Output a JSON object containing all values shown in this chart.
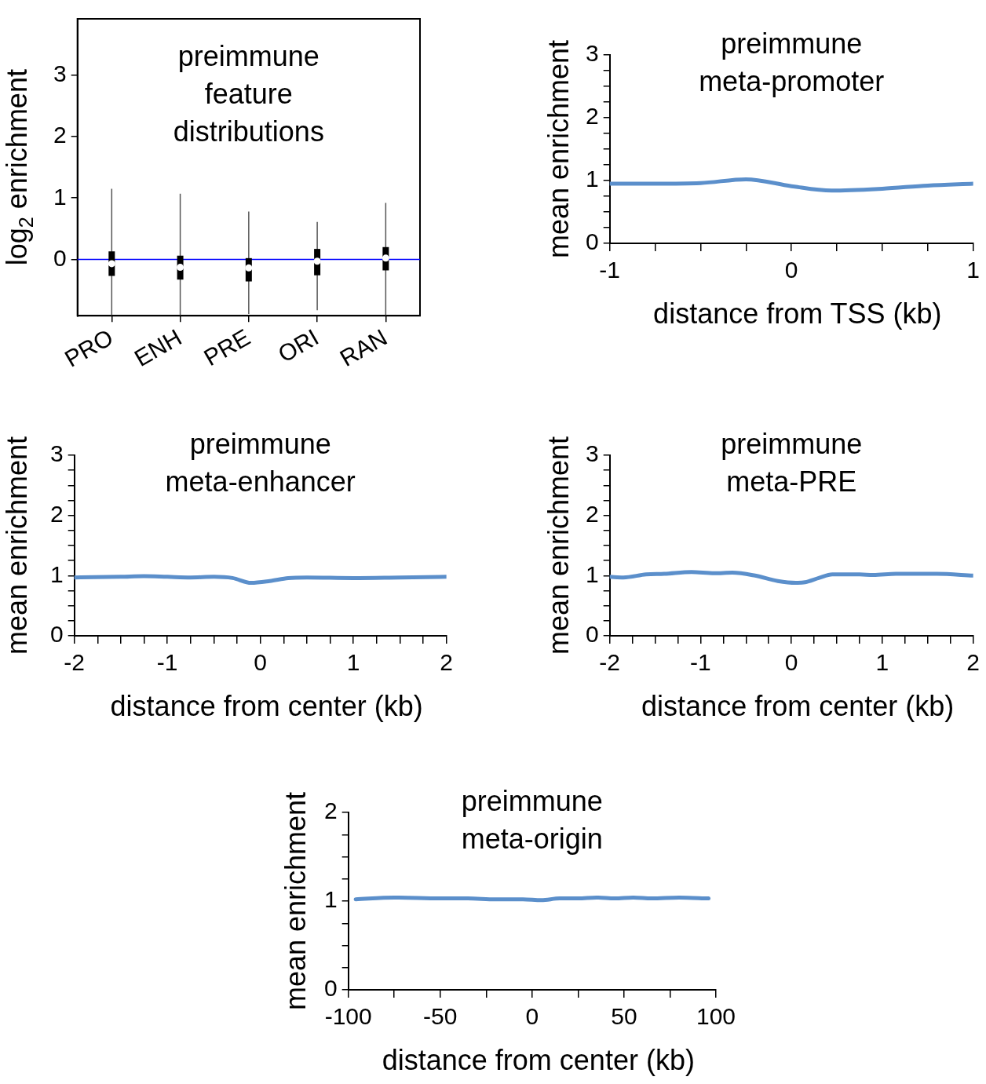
{
  "chart_data": [
    {
      "type": "box",
      "title": "preimmune\nfeature\ndistributions",
      "ylabel": "log$_{2}$ enrichment",
      "categories": [
        "PRO",
        "ENH",
        "PRE",
        "ORI",
        "RAN"
      ],
      "ylim": [
        -0.92,
        3.92
      ],
      "yticks": [
        0,
        1,
        2,
        3
      ],
      "boxes": [
        {
          "low": -0.91,
          "q1": -0.27,
          "median": -0.07,
          "q3": 0.13,
          "high": 1.15
        },
        {
          "low": -0.91,
          "q1": -0.33,
          "median": -0.13,
          "q3": 0.06,
          "high": 1.07
        },
        {
          "low": -0.89,
          "q1": -0.36,
          "median": -0.14,
          "q3": 0.02,
          "high": 0.78
        },
        {
          "low": -0.83,
          "q1": -0.26,
          "median": -0.03,
          "q3": 0.17,
          "high": 0.61
        },
        {
          "low": -0.91,
          "q1": -0.18,
          "median": 0.02,
          "q3": 0.2,
          "high": 0.92
        }
      ],
      "ref_lines": [
        {
          "axis": "y",
          "value": 0,
          "color": "#0000ff"
        }
      ]
    },
    {
      "type": "line",
      "title": "preimmune\nmeta-promoter",
      "xlabel": "distance from TSS (kb)",
      "ylabel": "mean enrichment",
      "x": [
        -1,
        -0.75,
        -0.5,
        -0.25,
        0,
        0.22,
        0.5,
        0.75,
        1
      ],
      "xlim": [
        -1,
        1
      ],
      "ylim": [
        0,
        3
      ],
      "xticks": [
        -1,
        {
          "value": -0.75,
          "label": null
        },
        {
          "value": -0.5,
          "label": null
        },
        {
          "value": -0.25,
          "label": null
        },
        0,
        {
          "value": 0.25,
          "label": null
        },
        {
          "value": 0.5,
          "label": null
        },
        {
          "value": 0.75,
          "label": null
        },
        1
      ],
      "yticks": [
        0,
        {
          "value": 0.25,
          "label": null
        },
        {
          "value": 0.5,
          "label": null
        },
        {
          "value": 0.75,
          "label": null
        },
        1,
        {
          "value": 1.25,
          "label": null
        },
        {
          "value": 1.5,
          "label": null
        },
        {
          "value": 1.75,
          "label": null
        },
        2,
        {
          "value": 2.25,
          "label": null
        },
        {
          "value": 2.5,
          "label": null
        },
        {
          "value": 2.75,
          "label": null
        },
        3
      ],
      "series": [
        {
          "color": "#5b8fcb",
          "values": [
            0.95,
            0.95,
            0.96,
            1.02,
            0.91,
            0.84,
            0.87,
            0.92,
            0.95
          ]
        }
      ]
    },
    {
      "type": "line",
      "title": "preimmune\nmeta-enhancer",
      "xlabel": "distance from center (kb)",
      "ylabel": "mean enrichment",
      "x": [
        -2,
        -1.5,
        -1.25,
        -1,
        -0.75,
        -0.5,
        -0.3,
        -0.1,
        0.1,
        0.3,
        0.5,
        1,
        1.5,
        2
      ],
      "xlim": [
        -2,
        2
      ],
      "ylim": [
        0,
        3
      ],
      "xticks": [
        -2,
        {
          "value": -1.75,
          "label": null
        },
        {
          "value": -1.5,
          "label": null
        },
        {
          "value": -1.25,
          "label": null
        },
        -1,
        {
          "value": -0.75,
          "label": null
        },
        {
          "value": -0.5,
          "label": null
        },
        {
          "value": -0.25,
          "label": null
        },
        0,
        {
          "value": 0.25,
          "label": null
        },
        {
          "value": 0.5,
          "label": null
        },
        {
          "value": 0.75,
          "label": null
        },
        1,
        {
          "value": 1.25,
          "label": null
        },
        {
          "value": 1.5,
          "label": null
        },
        {
          "value": 1.75,
          "label": null
        },
        2
      ],
      "yticks": [
        0,
        {
          "value": 0.25,
          "label": null
        },
        {
          "value": 0.5,
          "label": null
        },
        {
          "value": 0.75,
          "label": null
        },
        1,
        {
          "value": 1.25,
          "label": null
        },
        {
          "value": 1.5,
          "label": null
        },
        {
          "value": 1.75,
          "label": null
        },
        2,
        {
          "value": 2.25,
          "label": null
        },
        {
          "value": 2.5,
          "label": null
        },
        {
          "value": 2.75,
          "label": null
        },
        3
      ],
      "series": [
        {
          "color": "#5b8fcb",
          "values": [
            0.97,
            0.98,
            0.99,
            0.98,
            0.97,
            0.98,
            0.96,
            0.88,
            0.91,
            0.96,
            0.97,
            0.96,
            0.97,
            0.98
          ]
        }
      ]
    },
    {
      "type": "line",
      "title": "preimmune\nmeta-PRE",
      "xlabel": "distance from center (kb)",
      "ylabel": "mean enrichment",
      "x": [
        -2,
        -1.85,
        -1.6,
        -1.4,
        -1.1,
        -0.85,
        -0.65,
        -0.4,
        -0.15,
        0.05,
        0.15,
        0.3,
        0.45,
        0.75,
        0.9,
        1.15,
        1.6,
        2
      ],
      "xlim": [
        -2,
        2
      ],
      "ylim": [
        0,
        3
      ],
      "xticks": [
        -2,
        {
          "value": -1.75,
          "label": null
        },
        {
          "value": -1.5,
          "label": null
        },
        {
          "value": -1.25,
          "label": null
        },
        -1,
        {
          "value": -0.75,
          "label": null
        },
        {
          "value": -0.5,
          "label": null
        },
        {
          "value": -0.25,
          "label": null
        },
        0,
        {
          "value": 0.25,
          "label": null
        },
        {
          "value": 0.5,
          "label": null
        },
        {
          "value": 0.75,
          "label": null
        },
        1,
        {
          "value": 1.25,
          "label": null
        },
        {
          "value": 1.5,
          "label": null
        },
        {
          "value": 1.75,
          "label": null
        },
        2
      ],
      "yticks": [
        0,
        {
          "value": 0.25,
          "label": null
        },
        {
          "value": 0.5,
          "label": null
        },
        {
          "value": 0.75,
          "label": null
        },
        1,
        {
          "value": 1.25,
          "label": null
        },
        {
          "value": 1.5,
          "label": null
        },
        {
          "value": 1.75,
          "label": null
        },
        2,
        {
          "value": 2.25,
          "label": null
        },
        {
          "value": 2.5,
          "label": null
        },
        {
          "value": 2.75,
          "label": null
        },
        3
      ],
      "series": [
        {
          "color": "#5b8fcb",
          "values": [
            0.98,
            0.97,
            1.02,
            1.03,
            1.06,
            1.04,
            1.05,
            1.0,
            0.91,
            0.88,
            0.89,
            0.96,
            1.02,
            1.02,
            1.01,
            1.03,
            1.03,
            1.0
          ]
        }
      ]
    },
    {
      "type": "line",
      "title": "preimmune\nmeta-origin",
      "xlabel": "distance from center (kb)",
      "ylabel": "mean enrichment",
      "x": [
        -96,
        -75,
        -50,
        -35,
        -20,
        -5,
        5,
        15,
        25,
        35,
        45,
        55,
        65,
        80,
        96
      ],
      "xlim": [
        -100,
        100
      ],
      "ylim": [
        0,
        2
      ],
      "xticks": [
        -100,
        {
          "value": -75,
          "label": null
        },
        -50,
        {
          "value": -25,
          "label": null
        },
        0,
        {
          "value": 25,
          "label": null
        },
        50,
        {
          "value": 75,
          "label": null
        },
        100
      ],
      "yticks": [
        0,
        {
          "value": 0.25,
          "label": null
        },
        {
          "value": 0.5,
          "label": null
        },
        {
          "value": 0.75,
          "label": null
        },
        1,
        {
          "value": 1.25,
          "label": null
        },
        {
          "value": 1.5,
          "label": null
        },
        {
          "value": 1.75,
          "label": null
        },
        2
      ],
      "series": [
        {
          "color": "#5b8fcb",
          "values": [
            1.02,
            1.04,
            1.03,
            1.03,
            1.02,
            1.02,
            1.01,
            1.03,
            1.03,
            1.04,
            1.03,
            1.04,
            1.03,
            1.04,
            1.03
          ]
        }
      ]
    }
  ]
}
